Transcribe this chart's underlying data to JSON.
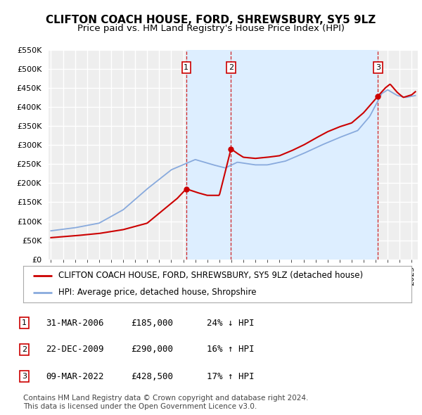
{
  "title": "CLIFTON COACH HOUSE, FORD, SHREWSBURY, SY5 9LZ",
  "subtitle": "Price paid vs. HM Land Registry's House Price Index (HPI)",
  "ylim": [
    0,
    550000
  ],
  "xlim_start": 1994.8,
  "xlim_end": 2025.5,
  "yticks": [
    0,
    50000,
    100000,
    150000,
    200000,
    250000,
    300000,
    350000,
    400000,
    450000,
    500000,
    550000
  ],
  "ytick_labels": [
    "£0",
    "£50K",
    "£100K",
    "£150K",
    "£200K",
    "£250K",
    "£300K",
    "£350K",
    "£400K",
    "£450K",
    "£500K",
    "£550K"
  ],
  "background_color": "#ffffff",
  "plot_bg_color": "#eeeeee",
  "grid_color": "#ffffff",
  "sale_dates": [
    2006.25,
    2009.97,
    2022.19
  ],
  "sale_prices": [
    185000,
    290000,
    428500
  ],
  "sale_labels": [
    "1",
    "2",
    "3"
  ],
  "sale_color": "#cc0000",
  "hpi_color": "#88aadd",
  "span_color": "#ddeeff",
  "legend_line1": "CLIFTON COACH HOUSE, FORD, SHREWSBURY, SY5 9LZ (detached house)",
  "legend_line2": "HPI: Average price, detached house, Shropshire",
  "table_data": [
    [
      "1",
      "31-MAR-2006",
      "£185,000",
      "24% ↓ HPI"
    ],
    [
      "2",
      "22-DEC-2009",
      "£290,000",
      "16% ↑ HPI"
    ],
    [
      "3",
      "09-MAR-2022",
      "£428,500",
      "17% ↑ HPI"
    ]
  ],
  "footnote": "Contains HM Land Registry data © Crown copyright and database right 2024.\nThis data is licensed under the Open Government Licence v3.0.",
  "title_fontsize": 11,
  "subtitle_fontsize": 9.5,
  "tick_fontsize": 8,
  "legend_fontsize": 8.5,
  "table_fontsize": 9,
  "footnote_fontsize": 7.5
}
